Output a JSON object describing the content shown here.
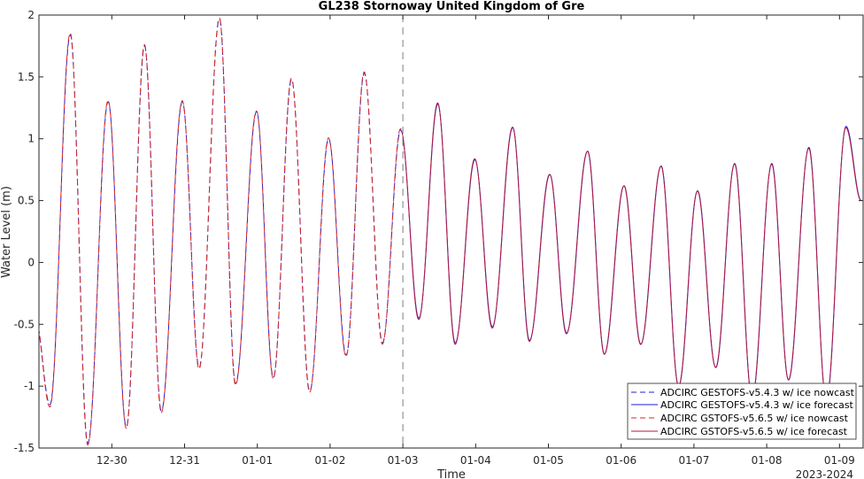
{
  "chart_data": {
    "type": "line",
    "title": "GL238 Stornoway United Kingdom of Gre",
    "xlabel": "Time",
    "ylabel": "Water Level (m)",
    "x_axis_secondary_label": "2023-2024",
    "xlim": [
      -2.05,
      8.3
    ],
    "ylim": [
      -1.5,
      2
    ],
    "x_ticks": [
      {
        "value": -1,
        "label": "12-30"
      },
      {
        "value": 0,
        "label": "12-31"
      },
      {
        "value": 1,
        "label": "01-01"
      },
      {
        "value": 2,
        "label": "01-02"
      },
      {
        "value": 3,
        "label": "01-03"
      },
      {
        "value": 4,
        "label": "01-04"
      },
      {
        "value": 5,
        "label": "01-05"
      },
      {
        "value": 6,
        "label": "01-06"
      },
      {
        "value": 7,
        "label": "01-07"
      },
      {
        "value": 8,
        "label": "01-08"
      },
      {
        "value": 9,
        "label": "01-09"
      }
    ],
    "y_ticks": [
      {
        "value": 2,
        "label": "2"
      },
      {
        "value": 1.5,
        "label": "1.5"
      },
      {
        "value": 1,
        "label": "1"
      },
      {
        "value": 0.5,
        "label": "0.5"
      },
      {
        "value": 0,
        "label": "0"
      },
      {
        "value": -0.5,
        "label": "-0.5"
      },
      {
        "value": -1,
        "label": "-1"
      },
      {
        "value": -1.5,
        "label": "-1.5"
      }
    ],
    "nowcast_forecast_divider_x": 3.0,
    "grid": false,
    "legend_position": "bottom-right",
    "extrema": [
      {
        "x": -2.05,
        "y": -0.45
      },
      {
        "x": -1.85,
        "y": -1.15
      },
      {
        "x": -1.57,
        "y": 1.84
      },
      {
        "x": -1.33,
        "y": -1.46
      },
      {
        "x": -1.05,
        "y": 1.3
      },
      {
        "x": -0.8,
        "y": -1.33
      },
      {
        "x": -0.55,
        "y": 1.75
      },
      {
        "x": -0.32,
        "y": -1.2
      },
      {
        "x": -0.03,
        "y": 1.3
      },
      {
        "x": 0.2,
        "y": -0.85
      },
      {
        "x": 0.48,
        "y": 1.97
      },
      {
        "x": 0.7,
        "y": -0.98
      },
      {
        "x": 0.99,
        "y": 1.22
      },
      {
        "x": 1.22,
        "y": -0.93
      },
      {
        "x": 1.47,
        "y": 1.48
      },
      {
        "x": 1.72,
        "y": -1.04
      },
      {
        "x": 1.98,
        "y": 1.0
      },
      {
        "x": 2.22,
        "y": -0.75
      },
      {
        "x": 2.47,
        "y": 1.53
      },
      {
        "x": 2.72,
        "y": -0.65
      },
      {
        "x": 2.97,
        "y": 1.07
      },
      {
        "x": 3.22,
        "y": -0.45
      },
      {
        "x": 3.48,
        "y": 1.28
      },
      {
        "x": 3.72,
        "y": -0.65
      },
      {
        "x": 3.99,
        "y": 0.83
      },
      {
        "x": 4.23,
        "y": -0.52
      },
      {
        "x": 4.51,
        "y": 1.09
      },
      {
        "x": 4.74,
        "y": -0.63
      },
      {
        "x": 5.02,
        "y": 0.71
      },
      {
        "x": 5.25,
        "y": -0.57
      },
      {
        "x": 5.54,
        "y": 0.9
      },
      {
        "x": 5.77,
        "y": -0.74
      },
      {
        "x": 6.04,
        "y": 0.62
      },
      {
        "x": 6.27,
        "y": -0.66
      },
      {
        "x": 6.55,
        "y": 0.78
      },
      {
        "x": 6.79,
        "y": -1.0
      },
      {
        "x": 7.05,
        "y": 0.58
      },
      {
        "x": 7.3,
        "y": -0.85
      },
      {
        "x": 7.56,
        "y": 0.8
      },
      {
        "x": 7.8,
        "y": -1.1
      },
      {
        "x": 8.07,
        "y": 0.8
      },
      {
        "x": 8.3,
        "y": -0.95
      },
      {
        "x": 8.58,
        "y": 0.93
      },
      {
        "x": 8.82,
        "y": -1.12
      },
      {
        "x": 9.09,
        "y": 1.1
      },
      {
        "x": 9.3,
        "y": 0.5
      }
    ],
    "series": [
      {
        "name": "ADCIRC GESTOFS-v5.4.3 w/ ice nowcast",
        "color": "#1f1fd9",
        "style": "dashed",
        "x_range": [
          -2.05,
          3.0
        ],
        "offset": 0.0
      },
      {
        "name": "ADCIRC GESTOFS-v5.4.3 w/ ice forecast",
        "color": "#1f1fd9",
        "style": "solid",
        "x_range": [
          3.0,
          9.3
        ],
        "offset": 0.0
      },
      {
        "name": "ADCIRC GSTOFS-v5.6.5 w/ ice nowcast",
        "color": "#d9261f",
        "style": "dashed",
        "x_range": [
          -2.05,
          3.0
        ],
        "offset": -0.02
      },
      {
        "name": "ADCIRC GSTOFS-v5.6.5 w/ ice forecast",
        "color": "#b01a40",
        "style": "solid",
        "x_range": [
          3.0,
          9.3
        ],
        "offset": -0.02
      }
    ]
  }
}
